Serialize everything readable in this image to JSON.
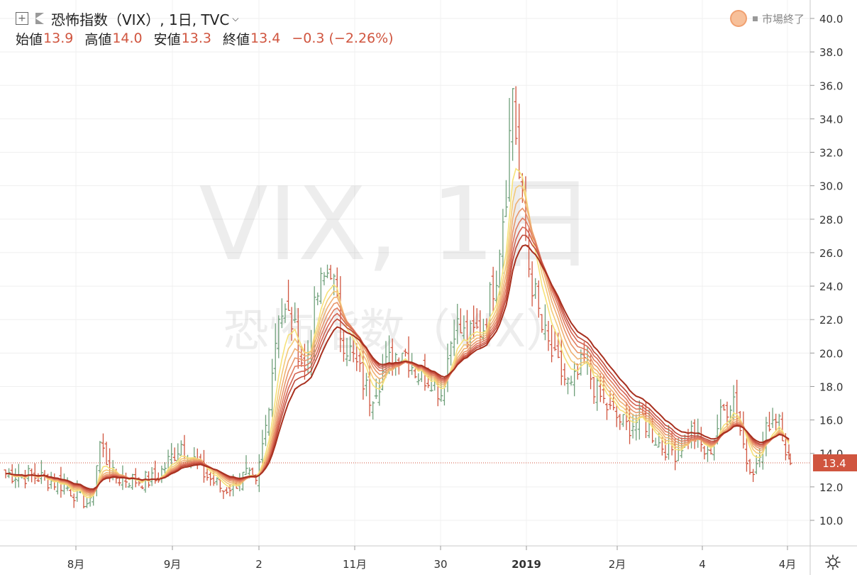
{
  "legend": {
    "title": "恐怖指数（VIX）, 1日, TVC",
    "open_label": "始値",
    "open": "13.9",
    "high_label": "高値",
    "high": "14.0",
    "low_label": "安値",
    "low": "13.3",
    "close_label": "終値",
    "close": "13.4",
    "change": "−0.3 (−2.26%)"
  },
  "market_status": "市場終了",
  "watermark": {
    "line1": "VIX, 1日",
    "line2": "恐怖指数（VIX）"
  },
  "icons": [
    "add-icon",
    "flag-icon",
    "chevron-down-icon",
    "market-status-icon",
    "settings-icon"
  ],
  "colors": {
    "up": "#6fa07a",
    "down": "#d0553f",
    "ribbon_fast": "#f6e27a",
    "ribbon_slow": "#a8301f"
  },
  "chart_data": {
    "type": "bar",
    "title": "恐怖指数（VIX）",
    "y_axis": {
      "ticks": [
        "10.0",
        "12.0",
        "14.0",
        "16.0",
        "18.0",
        "20.0",
        "22.0",
        "24.0",
        "26.0",
        "28.0",
        "30.0",
        "32.0",
        "34.0",
        "36.0",
        "38.0",
        "40.0"
      ],
      "range": [
        9,
        40.8
      ],
      "side": "right"
    },
    "x_axis": {
      "ticks": [
        "8月",
        "9月",
        "2",
        "11月",
        "30",
        "2019",
        "2月",
        "4",
        "4月"
      ]
    },
    "last_price": "13.4",
    "bars_close_approx": [
      {
        "date": "2018-07-16",
        "close": 12.8
      },
      {
        "date": "2018-07-30",
        "close": 12.6
      },
      {
        "date": "2018-08-10",
        "close": 10.9
      },
      {
        "date": "2018-08-13",
        "close": 15.0
      },
      {
        "date": "2018-08-31",
        "close": 12.6
      },
      {
        "date": "2018-09-07",
        "close": 14.6
      },
      {
        "date": "2018-09-21",
        "close": 11.7
      },
      {
        "date": "2018-10-01",
        "close": 12.0
      },
      {
        "date": "2018-10-10",
        "close": 22.9
      },
      {
        "date": "2018-10-24",
        "close": 25.2
      },
      {
        "date": "2018-10-31",
        "close": 21.2
      },
      {
        "date": "2018-11-09",
        "close": 17.4
      },
      {
        "date": "2018-11-20",
        "close": 22.5
      },
      {
        "date": "2018-11-30",
        "close": 18.1
      },
      {
        "date": "2018-12-07",
        "close": 23.2
      },
      {
        "date": "2018-12-21",
        "close": 30.1
      },
      {
        "date": "2018-12-24",
        "close": 36.1
      },
      {
        "date": "2019-01-04",
        "close": 21.4
      },
      {
        "date": "2019-01-18",
        "close": 17.8
      },
      {
        "date": "2019-02-01",
        "close": 16.1
      },
      {
        "date": "2019-02-15",
        "close": 14.9
      },
      {
        "date": "2019-03-04",
        "close": 14.6
      },
      {
        "date": "2019-03-22",
        "close": 16.5
      },
      {
        "date": "2019-03-29",
        "close": 13.7
      },
      {
        "date": "2019-04-05",
        "close": 13.4
      }
    ]
  }
}
